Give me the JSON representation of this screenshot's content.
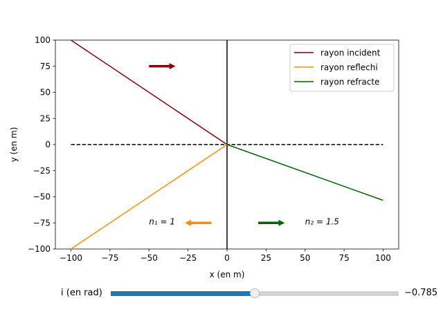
{
  "chart_data": {
    "type": "line",
    "xlabel": "x (en m)",
    "ylabel": "y (en m)",
    "xlim": [
      -110,
      110
    ],
    "ylim": [
      -100,
      100
    ],
    "xticks": [
      -100,
      -75,
      -50,
      -25,
      0,
      25,
      50,
      75,
      100
    ],
    "yticks": [
      -100,
      -75,
      -50,
      -25,
      0,
      25,
      50,
      75,
      100
    ],
    "series": [
      {
        "name": "rayon incident",
        "color": "#8b0000",
        "x": [
          -100,
          0
        ],
        "y": [
          100,
          0
        ]
      },
      {
        "name": "rayon reflechi",
        "color": "#ff8c00",
        "x": [
          0,
          -100
        ],
        "y": [
          0,
          -100
        ]
      },
      {
        "name": "rayon refracte",
        "color": "#006400",
        "x": [
          0,
          100
        ],
        "y": [
          0,
          -53.4
        ]
      }
    ],
    "lines": [
      {
        "role": "interface",
        "color": "#000000",
        "style": "solid",
        "x": [
          0,
          0
        ],
        "y": [
          -100,
          100
        ]
      },
      {
        "role": "normal",
        "color": "#000000",
        "style": "dashed",
        "x": [
          -100,
          100
        ],
        "y": [
          0,
          0
        ]
      }
    ],
    "arrows": [
      {
        "color": "#8b0000",
        "x": [
          -50,
          -33
        ],
        "y": [
          75,
          75
        ]
      },
      {
        "color": "#ff8c00",
        "x": [
          -10,
          -27
        ],
        "y": [
          -75,
          -75
        ]
      },
      {
        "color": "#006400",
        "x": [
          20,
          37
        ],
        "y": [
          -75,
          -75
        ]
      }
    ],
    "annotations": [
      {
        "text": "n₁ = 1",
        "x": -50,
        "y": -74
      },
      {
        "text": "n₂ = 1.5",
        "x": 50,
        "y": -74
      }
    ],
    "legend": "top-right",
    "grid": false
  },
  "slider": {
    "label": "i (en rad)",
    "value": -0.785,
    "value_text": "−0.785",
    "min": -1.5708,
    "max": 0,
    "fill_color": "#1f77b4"
  }
}
